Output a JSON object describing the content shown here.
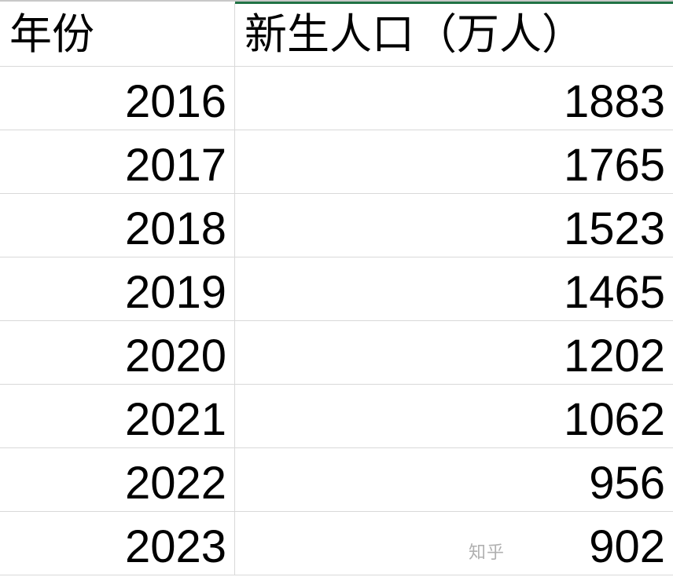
{
  "table": {
    "headers": [
      "年份",
      "新生人口（万人）"
    ],
    "rows": [
      [
        "2016",
        "1883"
      ],
      [
        "2017",
        "1765"
      ],
      [
        "2018",
        "1523"
      ],
      [
        "2019",
        "1465"
      ],
      [
        "2020",
        "1202"
      ],
      [
        "2021",
        "1062"
      ],
      [
        "2022",
        "956"
      ],
      [
        "2023",
        "902"
      ]
    ]
  },
  "watermark": "知乎",
  "colors": {
    "selection_accent": "#217346",
    "gridline": "#d9d9d9"
  }
}
